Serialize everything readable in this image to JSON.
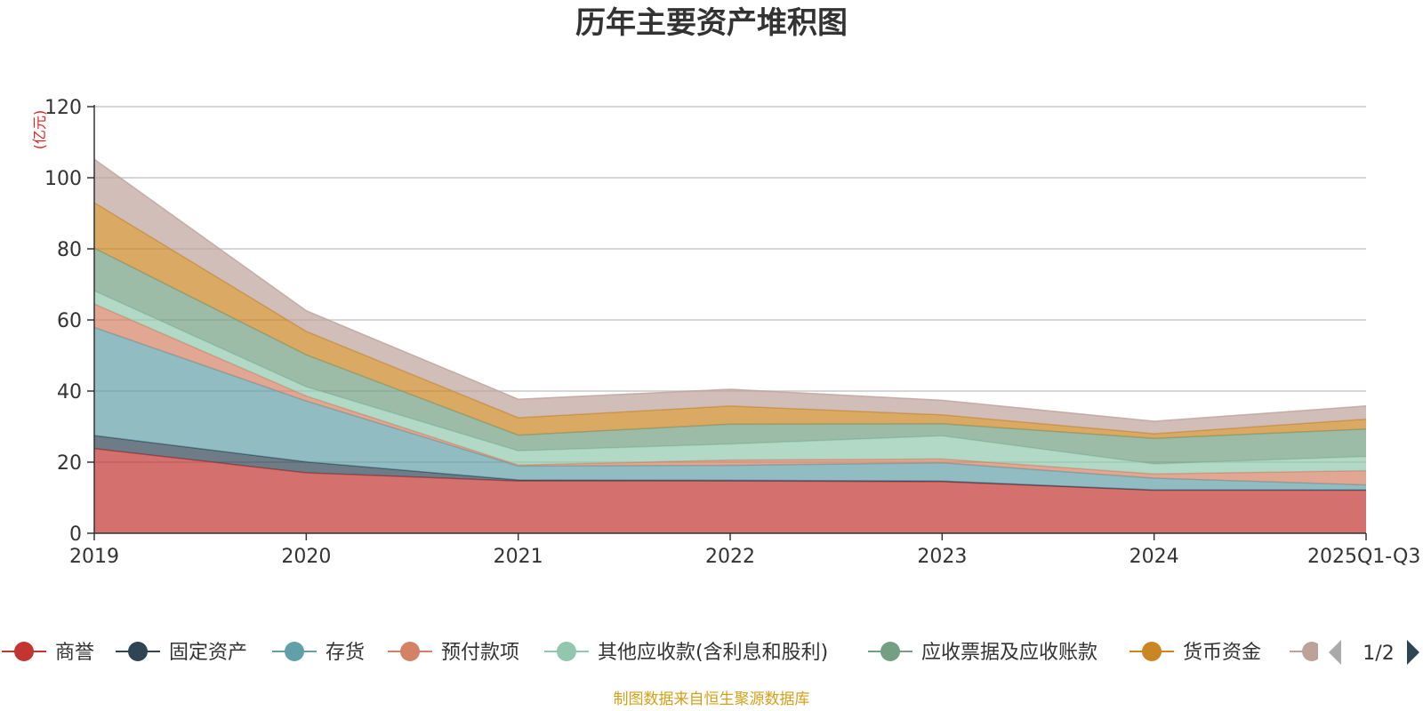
{
  "chart_data": {
    "type": "area",
    "stacked": true,
    "title": "历年主要资产堆积图",
    "ylabel": "(亿元)",
    "xlabel": "",
    "categories": [
      "2019",
      "2020",
      "2021",
      "2022",
      "2023",
      "2024",
      "2025Q1-Q3"
    ],
    "yticks": [
      0,
      20,
      40,
      60,
      80,
      100,
      120
    ],
    "ylim": [
      0,
      120
    ],
    "grid": true,
    "series": [
      {
        "name": "商誉",
        "color": "#c23531",
        "values": [
          23.8,
          17.0,
          14.7,
          14.7,
          14.5,
          12.1,
          12.1
        ]
      },
      {
        "name": "固定资产",
        "color": "#2f4554",
        "values": [
          3.7,
          3.1,
          0.3,
          0.2,
          0.2,
          0.1,
          0.1
        ]
      },
      {
        "name": "存货",
        "color": "#61a0a8",
        "values": [
          30.4,
          17.1,
          3.9,
          4.2,
          5.1,
          3.3,
          1.4
        ]
      },
      {
        "name": "预付款项",
        "color": "#d48265",
        "values": [
          6.6,
          1.4,
          0.3,
          1.5,
          1.1,
          1.2,
          4.0
        ]
      },
      {
        "name": "其他应收款(含利息和股利)",
        "color": "#91c7ae",
        "values": [
          3.7,
          2.6,
          4.0,
          4.5,
          6.5,
          2.8,
          4.0
        ]
      },
      {
        "name": "应收票据及应收账款",
        "color": "#749f83",
        "values": [
          12.0,
          9.0,
          4.4,
          5.6,
          3.4,
          7.2,
          7.7
        ]
      },
      {
        "name": "货币资金",
        "color": "#ca8622",
        "values": [
          12.8,
          6.6,
          4.9,
          5.1,
          2.5,
          1.3,
          2.8
        ]
      },
      {
        "name": "",
        "color": "#bda29a",
        "values": [
          12.2,
          5.8,
          5.2,
          4.7,
          4.1,
          3.5,
          3.7
        ]
      }
    ],
    "legend_position": "bottom",
    "legend_page": "1/2"
  },
  "source_note": "制图数据来自恒生聚源数据库"
}
